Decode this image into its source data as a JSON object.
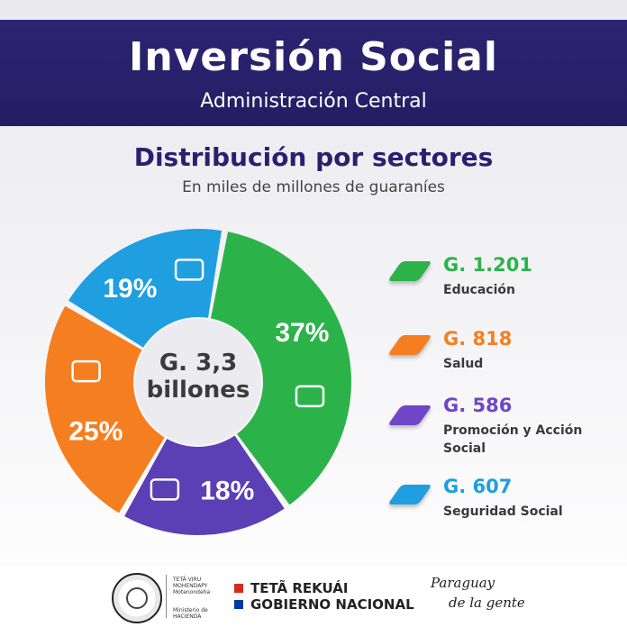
{
  "banner": {
    "title": "Inversión Social",
    "subtitle": "Administración Central"
  },
  "heading": "Distribución por sectores",
  "subheading": "En miles de millones de guaraníes",
  "center": {
    "line1": "G. 3,3",
    "line2": "billones"
  },
  "chart_data": {
    "type": "pie",
    "style": "donut",
    "total_label": "G. 3,3 billones",
    "categories": [
      "Educación",
      "Promoción y Acción Social",
      "Salud",
      "Seguridad Social"
    ],
    "values": [
      37,
      18,
      25,
      19
    ],
    "value_labels": [
      "37%",
      "18%",
      "25%",
      "19%"
    ],
    "colors": [
      "#2bb34a",
      "#5a3fb5",
      "#f57f20",
      "#1f9ee0"
    ],
    "icons": [
      "reading-person-icon",
      "family-house-icon",
      "medical-kit-icon",
      "police-car-icon"
    ]
  },
  "legend": [
    {
      "value": "G. 1.201",
      "label": "Educación",
      "color": "#2bb34a"
    },
    {
      "value": "G. 818",
      "label": "Salud",
      "color": "#f57f20"
    },
    {
      "value": "G. 586",
      "label": "Promoción y Acción Social",
      "color": "#6e46c7"
    },
    {
      "value": "G. 607",
      "label": "Seguridad Social",
      "color": "#1f9ee0"
    }
  ],
  "footer": {
    "ministry_a": "TETÃ VIRU MOHENDAPY Motenondeha",
    "ministry_b": "Ministerio de HACIENDA",
    "gov_line1": "TETÃ REKUÁI",
    "gov_line2": "GOBIERNO NACIONAL",
    "brand_line1": "Paraguay",
    "brand_line2": "de la gente"
  }
}
